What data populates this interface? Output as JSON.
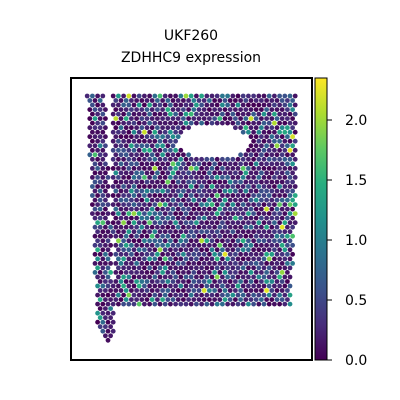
{
  "chart_data": {
    "type": "scatter",
    "subtype": "spatial-hexbin",
    "title": "UKF260",
    "subtitle": "ZDHHC9 expression",
    "xlabel": "",
    "ylabel": "",
    "axis_ticks": "none",
    "colorbar": {
      "colormap": "viridis",
      "range": [
        0.0,
        2.35
      ],
      "ticks": [
        "0.0",
        "0.5",
        "1.0",
        "1.5",
        "2.0"
      ],
      "tick_values": [
        0.0,
        0.5,
        1.0,
        1.5,
        2.0
      ]
    },
    "expression_summary": {
      "typical": 0.3,
      "max": 2.3,
      "dominant_color": "#440154"
    },
    "tissue_regions": [
      {
        "name": "main-tissue",
        "description": "large block of spots, roughly square"
      },
      {
        "name": "left-strip",
        "description": "narrow vertical strip of spots on the left"
      },
      {
        "name": "hole",
        "description": "empty region near the top of the main tissue"
      }
    ]
  }
}
